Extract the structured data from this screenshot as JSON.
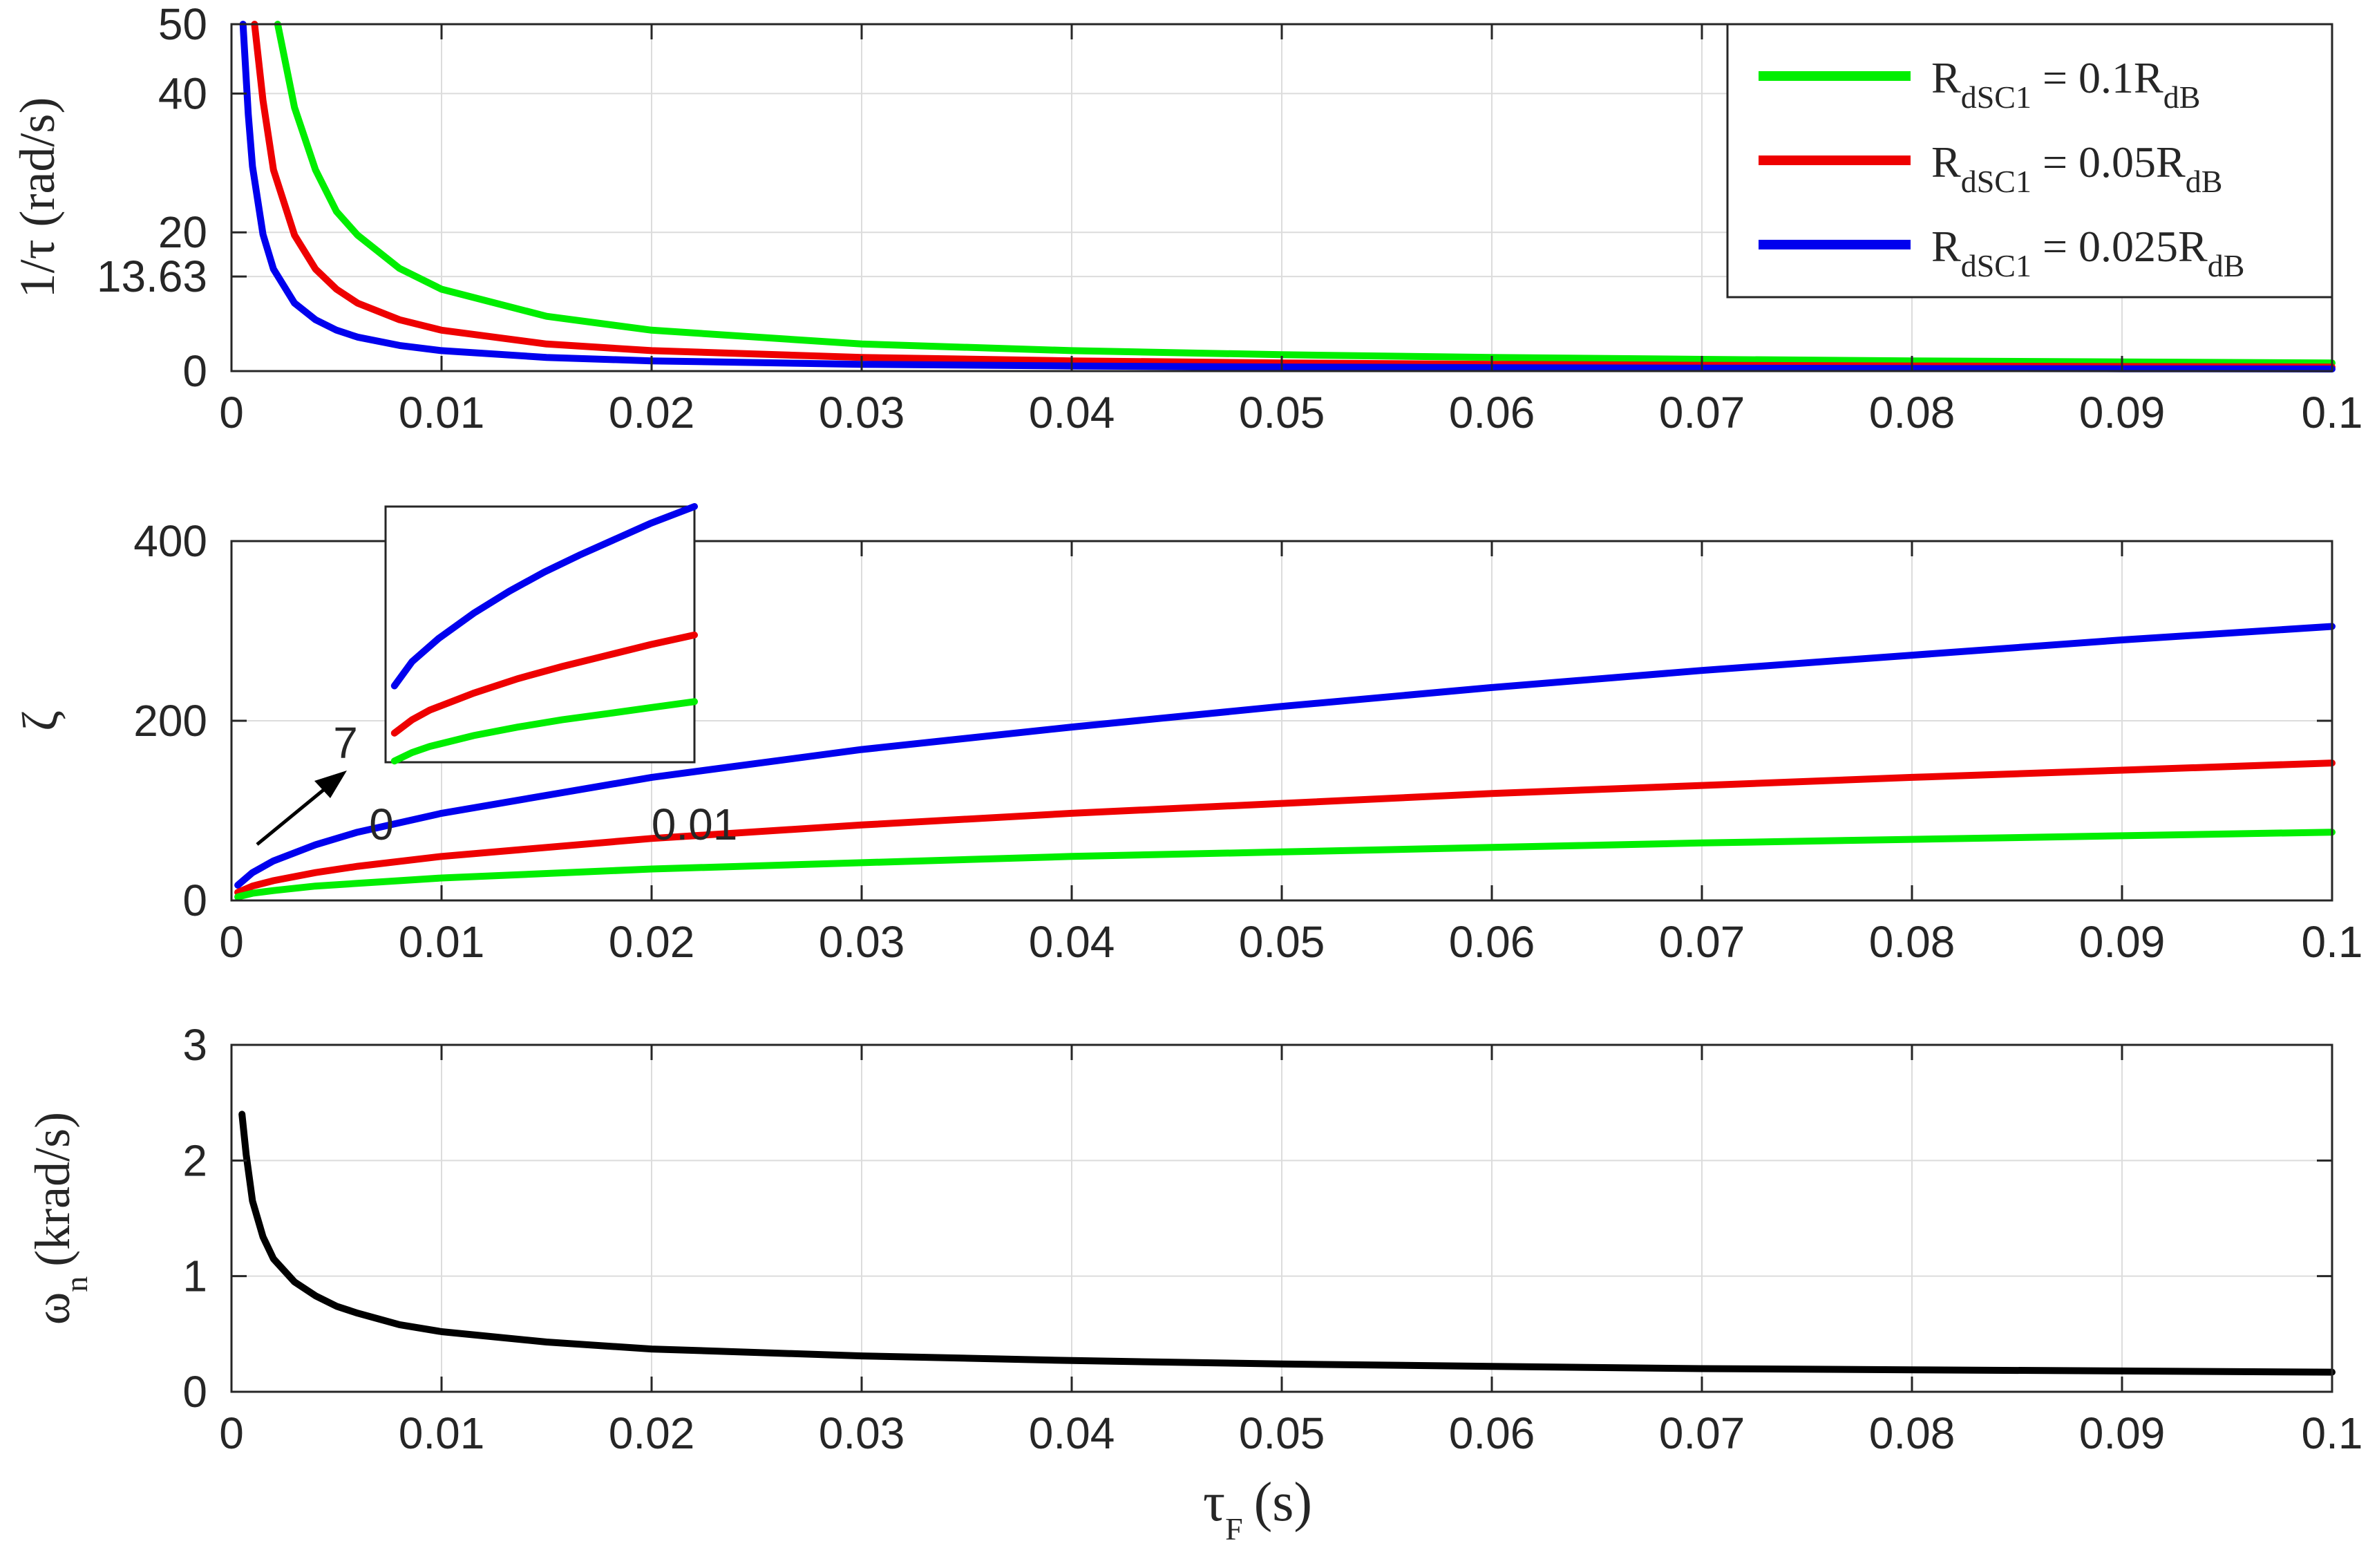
{
  "chart_data": [
    {
      "type": "line",
      "ylabel": "1/τ (rad/s)",
      "xlim": [
        0,
        0.1
      ],
      "ylim": [
        0,
        50
      ],
      "xticks": [
        "0",
        "0.01",
        "0.02",
        "0.03",
        "0.04",
        "0.05",
        "0.06",
        "0.07",
        "0.08",
        "0.09",
        "0.1"
      ],
      "yticks": [
        {
          "value": 0,
          "label": "0"
        },
        {
          "value": 13.63,
          "label": "13.63"
        },
        {
          "value": 20,
          "label": "20"
        },
        {
          "value": 40,
          "label": "40"
        },
        {
          "value": 50,
          "label": "50"
        }
      ],
      "grid": true,
      "legend": {
        "position": "top-right",
        "entries": [
          {
            "prefix": "R",
            "sub": "dSC1",
            "mid": " = 0.1R",
            "sub2": "dB",
            "color": "#00ee00"
          },
          {
            "prefix": "R",
            "sub": "dSC1",
            "mid": " = 0.05R",
            "sub2": "dB",
            "color": "#ee0000"
          },
          {
            "prefix": "R",
            "sub": "dSC1",
            "mid": " = 0.025R",
            "sub2": "dB",
            "color": "#0000ee"
          }
        ]
      },
      "series": [
        {
          "color": "#00ee00",
          "x": [
            0.0022,
            0.003,
            0.004,
            0.005,
            0.006,
            0.008,
            0.01,
            0.015,
            0.02,
            0.03,
            0.04,
            0.05,
            0.06,
            0.07,
            0.08,
            0.09,
            0.1
          ],
          "y": [
            50,
            38,
            29,
            23,
            19.6,
            14.8,
            11.8,
            7.9,
            5.9,
            3.9,
            2.95,
            2.36,
            1.97,
            1.69,
            1.47,
            1.31,
            1.18
          ]
        },
        {
          "color": "#ee0000",
          "x": [
            0.0011,
            0.0015,
            0.002,
            0.003,
            0.004,
            0.005,
            0.006,
            0.008,
            0.01,
            0.015,
            0.02,
            0.03,
            0.04,
            0.05,
            0.06,
            0.07,
            0.08,
            0.09,
            0.1
          ],
          "y": [
            50,
            39,
            29,
            19.6,
            14.7,
            11.8,
            9.8,
            7.4,
            5.9,
            3.9,
            2.95,
            1.97,
            1.47,
            1.18,
            0.98,
            0.84,
            0.74,
            0.66,
            0.59
          ]
        },
        {
          "color": "#0000ee",
          "x": [
            0.00055,
            0.0008,
            0.001,
            0.0015,
            0.002,
            0.003,
            0.004,
            0.005,
            0.006,
            0.008,
            0.01,
            0.015,
            0.02,
            0.03,
            0.04,
            0.05,
            0.06,
            0.07,
            0.08,
            0.09,
            0.1
          ],
          "y": [
            50,
            37,
            29.5,
            19.7,
            14.7,
            9.8,
            7.4,
            5.9,
            4.9,
            3.7,
            2.95,
            1.97,
            1.47,
            0.98,
            0.74,
            0.59,
            0.49,
            0.42,
            0.37,
            0.33,
            0.3
          ]
        }
      ]
    },
    {
      "type": "line",
      "ylabel": "ζ",
      "xlim": [
        0,
        0.1
      ],
      "ylim": [
        0,
        400
      ],
      "xticks": [
        "0",
        "0.01",
        "0.02",
        "0.03",
        "0.04",
        "0.05",
        "0.06",
        "0.07",
        "0.08",
        "0.09",
        "0.1"
      ],
      "yticks": [
        {
          "value": 0,
          "label": "0"
        },
        {
          "value": 200,
          "label": "200"
        },
        {
          "value": 400,
          "label": "400"
        }
      ],
      "grid": true,
      "series": [
        {
          "color": "#0000ee",
          "x": [
            0.0003,
            0.001,
            0.002,
            0.004,
            0.006,
            0.01,
            0.02,
            0.03,
            0.04,
            0.05,
            0.06,
            0.07,
            0.08,
            0.09,
            0.1
          ],
          "y": [
            17,
            31,
            44,
            62,
            76,
            97,
            137,
            168,
            193,
            216,
            237,
            256,
            273,
            290,
            305
          ]
        },
        {
          "color": "#ee0000",
          "x": [
            0.0003,
            0.001,
            0.002,
            0.004,
            0.006,
            0.01,
            0.02,
            0.03,
            0.04,
            0.05,
            0.06,
            0.07,
            0.08,
            0.09,
            0.1
          ],
          "y": [
            9,
            16,
            22,
            31,
            38,
            49,
            69,
            84,
            97,
            108,
            119,
            128,
            137,
            145,
            153
          ]
        },
        {
          "color": "#00ee00",
          "x": [
            0.0003,
            0.001,
            0.002,
            0.004,
            0.006,
            0.01,
            0.02,
            0.03,
            0.04,
            0.05,
            0.06,
            0.07,
            0.08,
            0.09,
            0.1
          ],
          "y": [
            4,
            8,
            11,
            16,
            19,
            25,
            35,
            42,
            49,
            54,
            59,
            64,
            68,
            72,
            76
          ]
        }
      ],
      "inset": {
        "xtick_labels": [
          "0",
          "0.01"
        ],
        "ytick_label": "7",
        "xlim": [
          0,
          0.00035
        ],
        "ylim": [
          6.9,
          28
        ],
        "series": [
          {
            "color": "#0000ee",
            "x": [
              1e-05,
              3e-05,
              6e-05,
              0.0001,
              0.00014,
              0.00018,
              0.00022,
              0.00026,
              0.0003,
              0.00035
            ],
            "y": [
              13.2,
              15.2,
              17.1,
              19.2,
              21.0,
              22.6,
              24.0,
              25.3,
              26.6,
              28
            ]
          },
          {
            "color": "#ee0000",
            "x": [
              1e-05,
              3e-05,
              5e-05,
              0.0001,
              0.00015,
              0.0002,
              0.00025,
              0.0003,
              0.00035
            ],
            "y": [
              9.3,
              10.4,
              11.2,
              12.6,
              13.8,
              14.8,
              15.7,
              16.6,
              17.4
            ]
          },
          {
            "color": "#00ee00",
            "x": [
              1e-05,
              3e-05,
              5e-05,
              0.0001,
              0.00015,
              0.0002,
              0.00025,
              0.0003,
              0.00035
            ],
            "y": [
              7.0,
              7.7,
              8.2,
              9.1,
              9.8,
              10.4,
              10.9,
              11.4,
              11.9
            ]
          }
        ]
      }
    },
    {
      "type": "line",
      "ylabel": "ω",
      "ylabel_sub": "n",
      "ylabel_unit": "(krad/s)",
      "xlabel": "τ",
      "xlabel_sub": "F",
      "xlabel_unit": "(s)",
      "xlim": [
        0,
        0.1
      ],
      "ylim": [
        0,
        3
      ],
      "xticks": [
        "0",
        "0.01",
        "0.02",
        "0.03",
        "0.04",
        "0.05",
        "0.06",
        "0.07",
        "0.08",
        "0.09",
        "0.1"
      ],
      "yticks": [
        {
          "value": 0,
          "label": "0"
        },
        {
          "value": 1,
          "label": "1"
        },
        {
          "value": 2,
          "label": "2"
        },
        {
          "value": 3,
          "label": "3"
        }
      ],
      "grid": true,
      "series": [
        {
          "color": "#000000",
          "x": [
            0.0005,
            0.0007,
            0.001,
            0.0015,
            0.002,
            0.003,
            0.004,
            0.005,
            0.006,
            0.008,
            0.01,
            0.015,
            0.02,
            0.03,
            0.04,
            0.05,
            0.06,
            0.07,
            0.08,
            0.09,
            0.1
          ],
          "y": [
            2.4,
            2.05,
            1.65,
            1.34,
            1.15,
            0.95,
            0.83,
            0.74,
            0.68,
            0.58,
            0.52,
            0.43,
            0.37,
            0.31,
            0.27,
            0.24,
            0.22,
            0.2,
            0.19,
            0.18,
            0.17
          ]
        }
      ]
    }
  ]
}
